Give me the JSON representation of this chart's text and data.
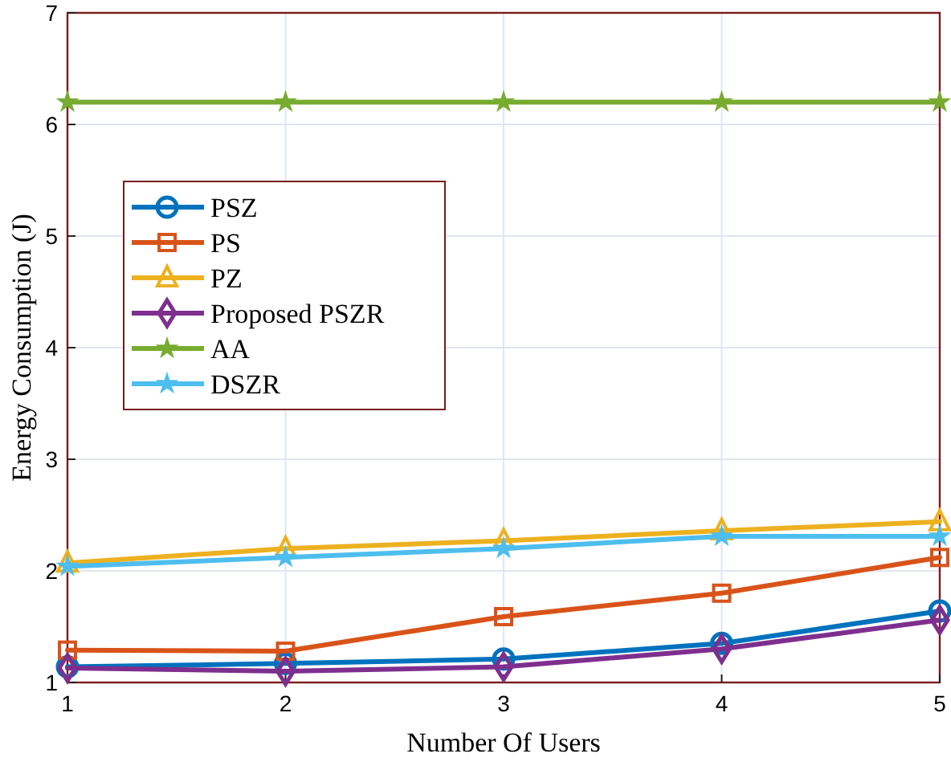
{
  "chart_data": {
    "type": "line",
    "xlabel": "Number Of Users",
    "ylabel": "Energy Consumption (J)",
    "x": [
      1,
      2,
      3,
      4,
      5
    ],
    "xlim": [
      1,
      5
    ],
    "xticks": [
      1,
      2,
      3,
      4,
      5
    ],
    "ylim": [
      1,
      7
    ],
    "yticks": [
      1,
      2,
      3,
      4,
      5,
      6,
      7
    ],
    "grid": true,
    "legend": "top left",
    "line_style": "solid",
    "series": [
      {
        "name": "PSZ",
        "color": "#0072bd",
        "marker": "circle",
        "values": [
          1.14,
          1.17,
          1.21,
          1.35,
          1.64
        ]
      },
      {
        "name": "PS",
        "color": "#d95319",
        "marker": "square",
        "values": [
          1.29,
          1.28,
          1.59,
          1.8,
          2.12
        ]
      },
      {
        "name": "PZ",
        "color": "#edb120",
        "marker": "triangle",
        "values": [
          2.07,
          2.2,
          2.27,
          2.36,
          2.44
        ]
      },
      {
        "name": "Proposed PSZR",
        "color": "#7e2f8e",
        "marker": "diamond",
        "values": [
          1.13,
          1.1,
          1.14,
          1.3,
          1.56
        ]
      },
      {
        "name": "AA",
        "color": "#77ac30",
        "marker": "star",
        "values": [
          6.2,
          6.2,
          6.2,
          6.2,
          6.2
        ]
      },
      {
        "name": "DSZR",
        "color": "#4dbeee",
        "marker": "star",
        "values": [
          2.04,
          2.12,
          2.2,
          2.31,
          2.31
        ]
      }
    ]
  }
}
